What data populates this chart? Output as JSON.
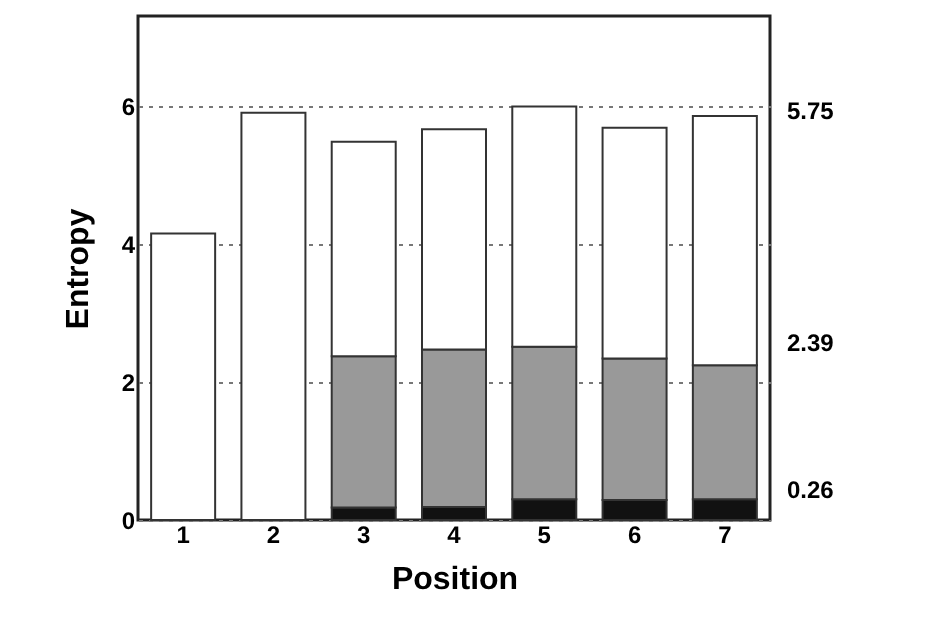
{
  "chart_data": {
    "type": "bar",
    "stacked": true,
    "xlabel": "Position",
    "ylabel": "Entropy",
    "categories": [
      "1",
      "2",
      "3",
      "4",
      "5",
      "6",
      "7"
    ],
    "series": [
      {
        "color": "#111111",
        "values": [
          null,
          null,
          0.18,
          0.19,
          0.3,
          0.29,
          0.3
        ]
      },
      {
        "color": "#999999",
        "values": [
          null,
          null,
          2.19,
          2.28,
          2.21,
          2.05,
          1.94
        ]
      },
      {
        "color": "#ffffff",
        "values": [
          4.15,
          5.9,
          3.11,
          3.19,
          3.48,
          3.34,
          3.61
        ]
      }
    ],
    "ylim": [
      0,
      7.3
    ],
    "yticks": [
      0,
      2,
      4,
      6
    ],
    "y2lim": [
      -0.19,
      7.11
    ],
    "y2ticks": [
      0.26,
      2.39,
      5.75
    ],
    "grid": "y"
  }
}
